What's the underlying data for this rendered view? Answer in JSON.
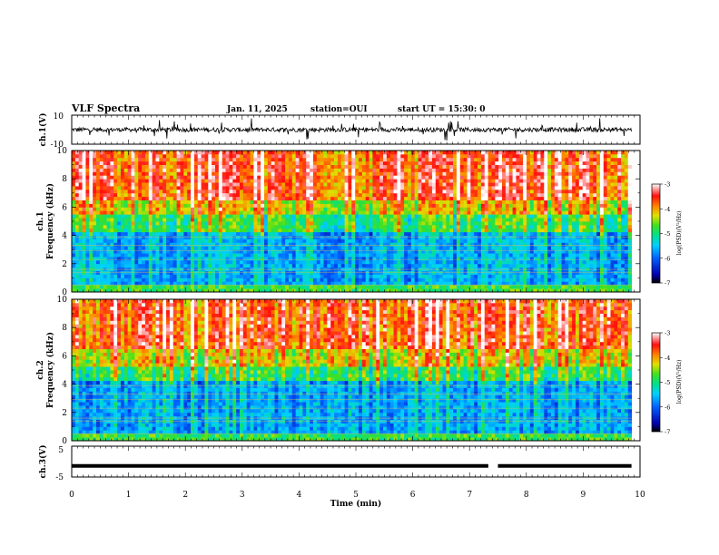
{
  "header": {
    "title": "VLF Spectra",
    "date": "Jan. 11, 2025",
    "station": "station=OUI",
    "start_ut": "start UT =  15:30: 0"
  },
  "chart_data": [
    {
      "id": "ch1-waveform",
      "type": "line",
      "ylabel": "ch.1(V)",
      "ytick_labels": [
        "10",
        "-10"
      ],
      "ylim": [
        -10,
        10
      ],
      "xlim": [
        0,
        10
      ],
      "description_values": {
        "baseline": 0,
        "typical_amplitude": 3,
        "spike_amplitude": 7
      },
      "line_color": "#000000"
    },
    {
      "id": "ch1-spectrogram",
      "type": "heatmap",
      "ylabel_top": "ch.1",
      "ylabel": "Frequency (kHz)",
      "yticks": [
        0,
        2,
        4,
        6,
        8,
        10
      ],
      "ylim": [
        0,
        10
      ],
      "xlim": [
        0,
        10
      ],
      "data_end_min": 9.85,
      "colorbar": {
        "label": "log(PSD)(V²/Hz)",
        "ticks": [
          -3,
          -4,
          -5,
          -6,
          -7
        ],
        "range": [
          -7,
          -3
        ],
        "colors": [
          "#000000",
          "#0000cc",
          "#00a0ff",
          "#00e0c0",
          "#40e040",
          "#e0e000",
          "#ff8000",
          "#ff1010",
          "#ffffff"
        ]
      },
      "bands": {
        "low_noise_top_khz": 4.2,
        "transition_khz": 5.5,
        "high_noise_khz": 6.5
      }
    },
    {
      "id": "ch2-spectrogram",
      "type": "heatmap",
      "ylabel_top": "ch.2",
      "ylabel": "Frequency (kHz)",
      "yticks": [
        0,
        2,
        4,
        6,
        8,
        10
      ],
      "ylim": [
        0,
        10
      ],
      "xlim": [
        0,
        10
      ],
      "data_end_min": 9.85,
      "colorbar": {
        "label": "log(PSD)(V²/Hz)",
        "ticks": [
          -3,
          -4,
          -5,
          -6,
          -7
        ],
        "range": [
          -7,
          -3
        ]
      },
      "bands": {
        "low_noise_top_khz": 4.3,
        "transition_khz": 5.3,
        "high_noise_khz": 6.6
      }
    },
    {
      "id": "ch3-waveform",
      "type": "line",
      "ylabel": "ch.3(V)",
      "ytick_labels": [
        "5",
        "-5"
      ],
      "ylim": [
        -5,
        5
      ],
      "xlim": [
        0,
        10
      ],
      "description_values": {
        "level": -1.4,
        "gap_start_min": 7.33,
        "gap_end_min": 7.5
      },
      "line_color": "#000000",
      "xlabel": "Time (min)",
      "xticks": [
        0,
        1,
        2,
        3,
        4,
        5,
        6,
        7,
        8,
        9,
        10
      ]
    }
  ]
}
